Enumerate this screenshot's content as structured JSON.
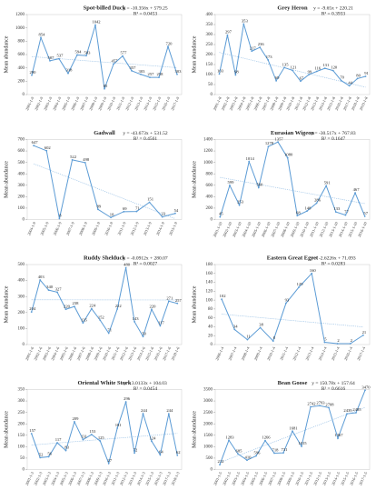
{
  "chart_data": [
    {
      "type": "line",
      "title": "Spot-billed Duck",
      "ylabel": "Mean abundance",
      "trend_label": "y = -10.356x + 579.25",
      "r2_label": "R² = 0.0453",
      "trend": {
        "slope": -10.356,
        "intercept": 579.25
      },
      "color": "#5b9bd5",
      "categories": [
        "2001-1-9",
        "2002-1-9",
        "2003-1-9",
        "2004-1-9",
        "2005-1-9",
        "2006-1-9",
        "2007-1-9",
        "2008-1-9",
        "2009-1-9",
        "2010-1-9",
        "2011-1-9",
        "2012-1-9",
        "2013-1-9",
        "2014-1-9",
        "2015-1-9",
        "2016-1-9",
        "2017-1-9"
      ],
      "values": [
        290,
        854,
        507,
        537,
        318,
        594,
        583,
        1042,
        85,
        457,
        577,
        357,
        303,
        257,
        258,
        720,
        303
      ],
      "ylim": [
        0,
        1200
      ],
      "yticks": [
        0,
        200,
        400,
        600,
        800,
        1000,
        1200
      ]
    },
    {
      "type": "line",
      "title": "Grey Heron",
      "ylabel": "Mean abundance",
      "trend_label": "y = -9.65x + 220.21",
      "r2_label": "R² = 0.3933",
      "trend": {
        "slope": -9.65,
        "intercept": 220.21
      },
      "color": "#5b9bd5",
      "categories": [
        "2001-1-8",
        "2002-1-8",
        "2003-1-8",
        "2004-1-8",
        "2005-1-8",
        "2006-1-8",
        "2007-1-8",
        "2008-1-8",
        "2009-1-8",
        "2010-1-8",
        "2011-1-8",
        "2012-1-8",
        "2013-1-8",
        "2014-1-8",
        "2015-1-8",
        "2016-1-8",
        "2017-1-8",
        "2018-1-8",
        "2019-1-8"
      ],
      "values": [
        103,
        297,
        98,
        353,
        217,
        236,
        173,
        69,
        135,
        121,
        67,
        99,
        116,
        131,
        120,
        70,
        44,
        80,
        91
      ],
      "ylim": [
        0,
        400
      ],
      "yticks": [
        0,
        50,
        100,
        150,
        200,
        250,
        300,
        350,
        400
      ]
    },
    {
      "type": "line",
      "title": "Gadwall",
      "ylabel": "Mean abundance",
      "trend_label": "y = -43.673x + 531.52",
      "r2_label": "R² = 0.4561",
      "trend": {
        "slope": -43.673,
        "intercept": 531.52
      },
      "color": "#5b9bd5",
      "categories": [
        "2004-1-9",
        "2005-1-9",
        "2006-1-9",
        "2007-1-9",
        "2008-1-9",
        "2009-1-9",
        "2010-1-9",
        "2011-1-9",
        "2012-1-9",
        "2013-1-9",
        "2014-1-9",
        "2015-1-9"
      ],
      "values": [
        647,
        602,
        8,
        522,
        498,
        89,
        18,
        69,
        71,
        151,
        23,
        54
      ],
      "ylim": [
        0,
        700
      ],
      "yticks": [
        0,
        100,
        200,
        300,
        400,
        500,
        600,
        700
      ]
    },
    {
      "type": "line",
      "title": "Eurasian Wigeon",
      "ylabel": "Mean abundance",
      "trend_label": "y = -30.517x + 767.83",
      "r2_label": "R² = 0.1647",
      "trend": {
        "slope": -30.517,
        "intercept": 767.83
      },
      "color": "#5b9bd5",
      "categories": [
        "2001-1-10",
        "2002-1-10",
        "2003-1-10",
        "2004-1-10",
        "2005-1-10",
        "2006-1-10",
        "2007-1-10",
        "2008-1-10",
        "2009-1-10",
        "2010-1-10",
        "2011-1-10",
        "2012-1-10",
        "2013-1-10",
        "2014-1-10",
        "2015-1-10",
        "2016-1-10"
      ],
      "values": [
        45,
        599,
        253,
        1014,
        560,
        1278,
        1357,
        1080,
        68,
        148,
        286,
        591,
        133,
        77,
        467,
        57
      ],
      "ylim": [
        0,
        1400
      ],
      "yticks": [
        0,
        200,
        400,
        600,
        800,
        1000,
        1200,
        1400
      ]
    },
    {
      "type": "line",
      "title": "Ruddy Shelduck",
      "ylabel": "Mean abundance",
      "trend_label": "y = -0.0912x + 280.07",
      "r2_label": "R² = 0.0027",
      "trend": {
        "slope": -0.0912,
        "intercept": 280.07
      },
      "color": "#5b9bd5",
      "categories": [
        "2001-1-6",
        "2002-1-6",
        "2003-1-6",
        "2004-1-6",
        "2005-1-6",
        "2006-1-6",
        "2007-1-6",
        "2008-1-6",
        "2009-1-6",
        "2010-1-6",
        "2011-1-6",
        "2012-1-6",
        "2013-1-6",
        "2014-1-6",
        "2015-1-6",
        "2016-1-6",
        "2017-1-6",
        "2018-1-6"
      ],
      "values": [
        204,
        403,
        340,
        327,
        220,
        238,
        135,
        224,
        152,
        71,
        222,
        480,
        143,
        50,
        220,
        117,
        271,
        257
      ],
      "ylim": [
        0,
        500
      ],
      "yticks": [
        0,
        100,
        200,
        300,
        400,
        500
      ]
    },
    {
      "type": "line",
      "title": "Eastern Great Egret",
      "ylabel": "Mean abundance",
      "trend_label": "y = -2.6226x + 71.093",
      "r2_label": "R² = 0.0283",
      "trend": {
        "slope": -2.6226,
        "intercept": 71.093
      },
      "color": "#5b9bd5",
      "categories": [
        "2006-1-4",
        "2007-1-4",
        "2008-1-4",
        "2009-1-4",
        "2010-1-4",
        "2011-1-4",
        "2012-1-4",
        "2013-1-4",
        "2014-1-4",
        "2015-1-4",
        "2016-1-4",
        "2017-1-4"
      ],
      "values": [
        102,
        34,
        11,
        38,
        8,
        93,
        129,
        160,
        5,
        2,
        2,
        21
      ],
      "ylim": [
        0,
        180
      ],
      "yticks": [
        0,
        20,
        40,
        60,
        80,
        100,
        120,
        140,
        160,
        180
      ]
    },
    {
      "type": "line",
      "title": "Oriental White Stork",
      "ylabel": "Mean abundance",
      "trend_label": "y = 3.0133x + 104.03",
      "r2_label": "R² = 0.0454",
      "trend": {
        "slope": 3.0133,
        "intercept": 104.03
      },
      "color": "#5b9bd5",
      "categories": [
        "2001-1-3",
        "2002-1-3",
        "2003-1-3",
        "2004-1-3",
        "2005-1-3",
        "2006-1-3",
        "2007-1-3",
        "2008-1-3",
        "2009-1-3",
        "2010-1-3",
        "2011-1-3",
        "2012-1-3",
        "2013-1-3",
        "2014-1-3",
        "2015-1-3",
        "2016-1-3",
        "2017-1-3",
        "2018-1-3"
      ],
      "values": [
        157,
        52,
        56,
        117,
        83,
        209,
        131,
        153,
        125,
        27,
        181,
        296,
        72,
        244,
        124,
        64,
        244,
        62
      ],
      "ylim": [
        0,
        350
      ],
      "yticks": [
        0,
        50,
        100,
        150,
        200,
        250,
        300,
        350
      ]
    },
    {
      "type": "line",
      "title": "Bean Goose",
      "ylabel": "Mean abundance",
      "trend_label": "y = 150.78x + 157.64",
      "r2_label": "R² = 0.6616",
      "trend": {
        "slope": 150.78,
        "intercept": 157.64
      },
      "color": "#5b9bd5",
      "categories": [
        "2001-1-5",
        "2002-1-5",
        "2003-1-5",
        "2004-1-5",
        "2005-1-5",
        "2006-1-5",
        "2007-1-5",
        "2008-1-5",
        "2009-1-5",
        "2010-1-5",
        "2011-1-5",
        "2012-1-5",
        "2013-1-5",
        "2014-1-5",
        "2015-1-5",
        "2016-1-5",
        "2017-1-5"
      ],
      "values": [
        212,
        1283,
        685,
        410,
        596,
        1266,
        718,
        731,
        1681,
        1015,
        2742,
        2793,
        2708,
        1367,
        2439,
        2485,
        3470
      ],
      "ylim": [
        0,
        3500
      ],
      "yticks": [
        0,
        500,
        1000,
        1500,
        2000,
        2500,
        3000,
        3500
      ]
    }
  ]
}
